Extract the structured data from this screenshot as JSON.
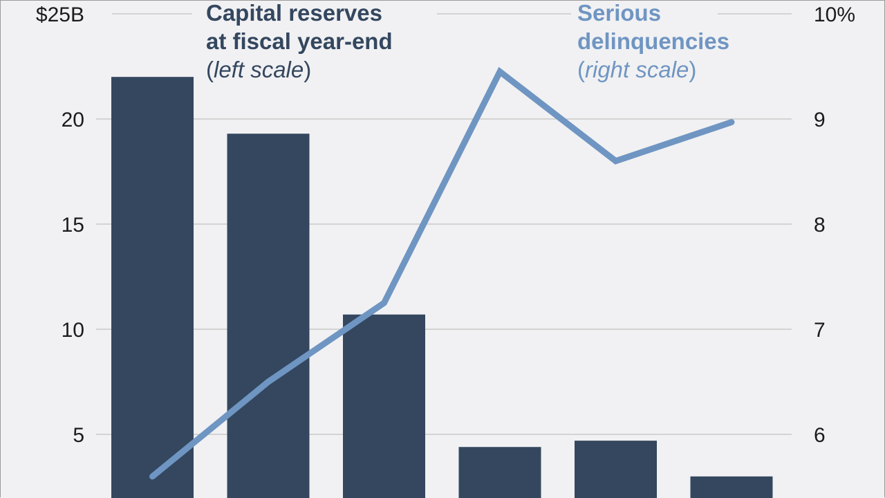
{
  "chart_data": {
    "type": "bar",
    "categories": [
      "",
      "",
      "",
      "",
      "",
      ""
    ],
    "series": [
      {
        "name": "Capital reserves at fiscal year-end",
        "type": "bar",
        "axis": "left",
        "color": "#34475f",
        "values": [
          22.0,
          19.3,
          10.7,
          4.4,
          4.7,
          3.0
        ]
      },
      {
        "name": "Serious delinquencies",
        "type": "line",
        "axis": "right",
        "color": "#6f95c2",
        "values": [
          5.6,
          6.5,
          7.25,
          9.45,
          8.6,
          8.97
        ]
      }
    ],
    "left_axis": {
      "ylim": [
        0,
        25
      ],
      "ticks": [
        5,
        10,
        15,
        20,
        25
      ],
      "tick_labels": [
        "5",
        "10",
        "15",
        "20",
        "$25B"
      ]
    },
    "right_axis": {
      "ylim": [
        5,
        10
      ],
      "ticks": [
        6,
        7,
        8,
        9,
        10
      ],
      "tick_labels": [
        "6",
        "7",
        "8",
        "9",
        "10%"
      ]
    },
    "legend": {
      "bars": {
        "line1": "Capital reserves",
        "line2": "at fiscal year-end",
        "paren_open": "(",
        "scale": "left scale",
        "paren_close": ")"
      },
      "line": {
        "line1": "Serious",
        "line2": "delinquencies",
        "paren_open": "(",
        "scale": "right scale",
        "paren_close": ")"
      }
    },
    "grid": true
  }
}
